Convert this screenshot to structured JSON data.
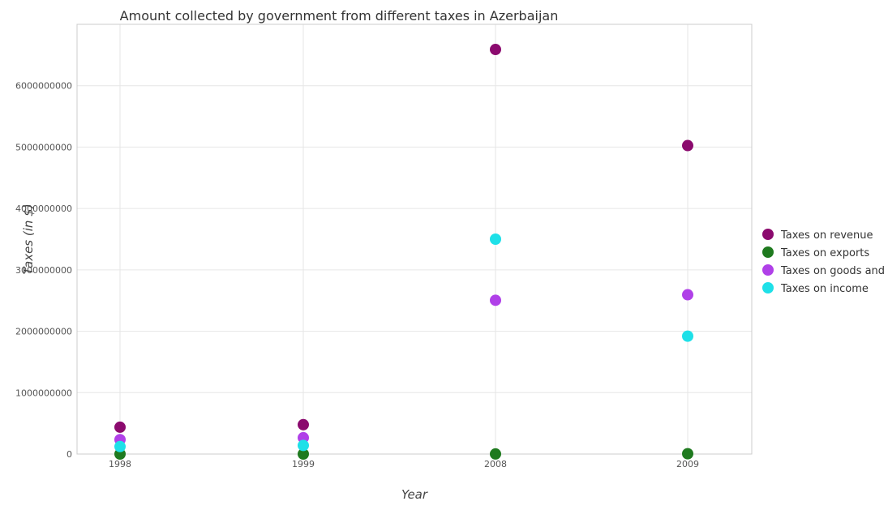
{
  "chart_data": {
    "type": "scatter",
    "title": "Amount collected by government from different taxes in Azerbaijan",
    "xlabel": "Year",
    "ylabel": "Taxes (in $)",
    "categories": [
      "1998",
      "1999",
      "2008",
      "2009"
    ],
    "ylim": [
      0,
      7000000000
    ],
    "yticks": [
      0,
      1000000000,
      2000000000,
      3000000000,
      4000000000,
      5000000000,
      6000000000
    ],
    "ytick_labels": [
      "0",
      "1000000000",
      "2000000000",
      "3000000000",
      "4000000000",
      "5000000000",
      "6000000000"
    ],
    "grid": true,
    "legend_position": "right",
    "series": [
      {
        "name": "Taxes on revenue",
        "color": "#8b0a6e",
        "values": [
          437000000,
          478000000,
          6590000000,
          5025000000
        ]
      },
      {
        "name": "Taxes on exports",
        "color": "#1f7a1f",
        "values": [
          0,
          0,
          1000000,
          5000000
        ]
      },
      {
        "name": "Taxes on goods and services",
        "color": "#b040e8",
        "values": [
          235000000,
          265000000,
          2505000000,
          2595000000
        ]
      },
      {
        "name": "Taxes on income",
        "color": "#1ee0e8",
        "values": [
          122000000,
          140000000,
          3500000000,
          1920000000
        ]
      }
    ]
  }
}
